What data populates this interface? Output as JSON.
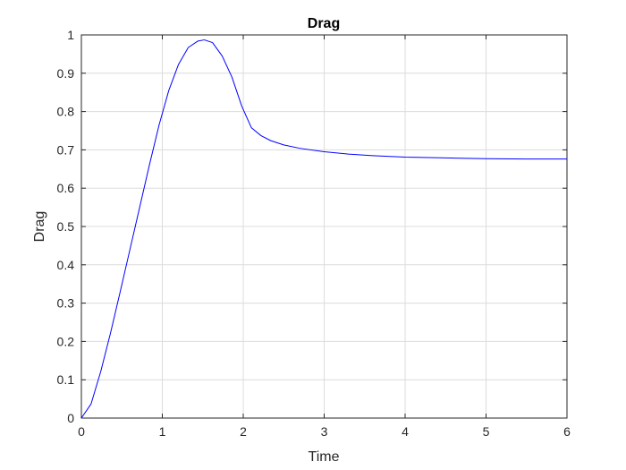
{
  "chart_data": {
    "type": "line",
    "title": "Drag",
    "xlabel": "Time",
    "ylabel": "Drag",
    "xlim": [
      0,
      6
    ],
    "ylim": [
      0,
      1
    ],
    "grid": true,
    "xticks": [
      "0",
      "1",
      "2",
      "3",
      "4",
      "5",
      "6"
    ],
    "yticks": [
      "0",
      "0.1",
      "0.2",
      "0.3",
      "0.4",
      "0.5",
      "0.6",
      "0.7",
      "0.8",
      "0.9",
      "1"
    ],
    "series": [
      {
        "color": "#0000ff",
        "x": [
          0,
          0.12,
          0.24,
          0.36,
          0.48,
          0.6,
          0.72,
          0.84,
          0.96,
          1.08,
          1.2,
          1.32,
          1.44,
          1.52,
          1.62,
          1.74,
          1.86,
          1.98,
          2.1,
          2.22,
          2.34,
          2.5,
          2.7,
          3.0,
          3.3,
          3.6,
          4.0,
          4.5,
          5.0,
          5.5,
          6.0
        ],
        "y": [
          0,
          0.037,
          0.122,
          0.222,
          0.33,
          0.44,
          0.55,
          0.66,
          0.765,
          0.855,
          0.923,
          0.967,
          0.984,
          0.987,
          0.98,
          0.945,
          0.89,
          0.815,
          0.758,
          0.737,
          0.724,
          0.713,
          0.704,
          0.695,
          0.689,
          0.685,
          0.681,
          0.679,
          0.677,
          0.676,
          0.676
        ]
      }
    ]
  }
}
